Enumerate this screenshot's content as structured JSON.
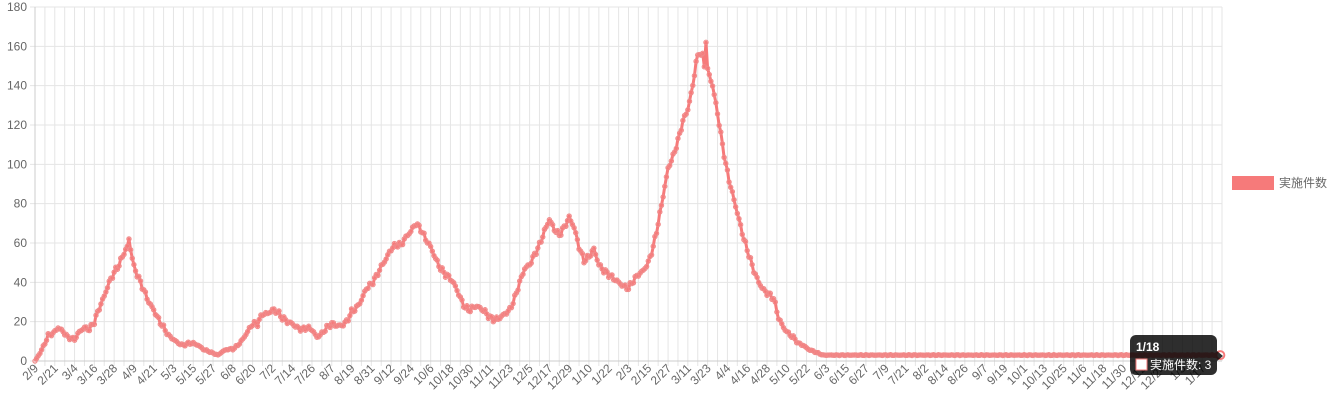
{
  "chart_data": {
    "type": "line",
    "title": "",
    "xlabel": "",
    "ylabel": "",
    "ylim": [
      0,
      180
    ],
    "yticks": [
      0,
      20,
      40,
      60,
      80,
      100,
      120,
      140,
      160,
      180
    ],
    "grid": true,
    "legend_position": "right",
    "colors": {
      "line": "#f67a7a",
      "fill": "#f67a7a",
      "point": "#f08a8a",
      "grid": "#e5e5e5",
      "axis": "#cccccc",
      "tick_text": "#666666"
    },
    "x_tick_labels": [
      "2/9",
      "2/21",
      "3/4",
      "3/16",
      "3/28",
      "4/9",
      "4/21",
      "5/3",
      "5/15",
      "5/27",
      "6/8",
      "6/20",
      "7/2",
      "7/14",
      "7/26",
      "8/7",
      "8/19",
      "8/31",
      "9/12",
      "9/24",
      "10/6",
      "10/18",
      "10/30",
      "11/11",
      "11/23",
      "12/5",
      "12/17",
      "12/29",
      "1/10",
      "1/22",
      "2/3",
      "2/15",
      "2/27",
      "3/11",
      "3/23",
      "4/4",
      "4/16",
      "4/28",
      "5/10",
      "5/22",
      "6/3",
      "6/15",
      "6/27",
      "7/9",
      "7/21",
      "8/2",
      "8/14",
      "8/26",
      "9/7",
      "9/19",
      "10/1",
      "10/13",
      "10/25",
      "11/6",
      "11/18",
      "11/30",
      "12/12",
      "12/24",
      "1/5",
      "1/17"
    ],
    "series": [
      {
        "name": "実施件数",
        "anchors": [
          [
            0,
            0
          ],
          [
            3,
            4
          ],
          [
            6,
            9
          ],
          [
            8,
            13
          ],
          [
            11,
            14
          ],
          [
            14,
            17
          ],
          [
            17,
            15
          ],
          [
            20,
            12
          ],
          [
            24,
            11
          ],
          [
            27,
            15
          ],
          [
            30,
            17
          ],
          [
            33,
            16
          ],
          [
            36,
            20
          ],
          [
            39,
            27
          ],
          [
            42,
            33
          ],
          [
            45,
            40
          ],
          [
            48,
            45
          ],
          [
            51,
            49
          ],
          [
            54,
            55
          ],
          [
            56,
            58
          ],
          [
            57,
            62
          ],
          [
            58,
            57
          ],
          [
            60,
            48
          ],
          [
            63,
            42
          ],
          [
            66,
            36
          ],
          [
            69,
            30
          ],
          [
            72,
            26
          ],
          [
            75,
            21
          ],
          [
            78,
            17
          ],
          [
            81,
            13
          ],
          [
            84,
            11
          ],
          [
            87,
            9
          ],
          [
            90,
            8
          ],
          [
            93,
            9
          ],
          [
            96,
            9
          ],
          [
            99,
            8
          ],
          [
            102,
            6
          ],
          [
            105,
            5
          ],
          [
            108,
            4
          ],
          [
            111,
            3
          ],
          [
            114,
            5
          ],
          [
            117,
            6
          ],
          [
            120,
            6
          ],
          [
            123,
            8
          ],
          [
            126,
            11
          ],
          [
            129,
            15
          ],
          [
            132,
            19
          ],
          [
            135,
            19
          ],
          [
            138,
            24
          ],
          [
            141,
            24
          ],
          [
            144,
            26
          ],
          [
            147,
            25
          ],
          [
            150,
            22
          ],
          [
            153,
            20
          ],
          [
            156,
            19
          ],
          [
            159,
            17
          ],
          [
            162,
            16
          ],
          [
            165,
            17
          ],
          [
            168,
            16
          ],
          [
            171,
            12
          ],
          [
            174,
            14
          ],
          [
            177,
            17
          ],
          [
            180,
            19
          ],
          [
            183,
            18
          ],
          [
            186,
            18
          ],
          [
            189,
            20
          ],
          [
            192,
            25
          ],
          [
            195,
            27
          ],
          [
            198,
            31
          ],
          [
            201,
            37
          ],
          [
            204,
            39
          ],
          [
            207,
            43
          ],
          [
            210,
            48
          ],
          [
            213,
            52
          ],
          [
            216,
            57
          ],
          [
            219,
            59
          ],
          [
            222,
            59
          ],
          [
            225,
            63
          ],
          [
            228,
            66
          ],
          [
            231,
            70
          ],
          [
            234,
            67
          ],
          [
            237,
            62
          ],
          [
            240,
            58
          ],
          [
            243,
            52
          ],
          [
            246,
            47
          ],
          [
            249,
            44
          ],
          [
            252,
            42
          ],
          [
            255,
            38
          ],
          [
            258,
            32
          ],
          [
            261,
            27
          ],
          [
            264,
            26
          ],
          [
            267,
            28
          ],
          [
            270,
            27
          ],
          [
            273,
            25
          ],
          [
            276,
            22
          ],
          [
            279,
            21
          ],
          [
            282,
            22
          ],
          [
            285,
            24
          ],
          [
            288,
            26
          ],
          [
            291,
            32
          ],
          [
            294,
            40
          ],
          [
            297,
            47
          ],
          [
            300,
            49
          ],
          [
            303,
            54
          ],
          [
            306,
            59
          ],
          [
            309,
            66
          ],
          [
            312,
            72
          ],
          [
            315,
            67
          ],
          [
            318,
            64
          ],
          [
            321,
            68
          ],
          [
            324,
            73
          ],
          [
            327,
            68
          ],
          [
            330,
            58
          ],
          [
            333,
            51
          ],
          [
            336,
            53
          ],
          [
            339,
            57
          ],
          [
            342,
            49
          ],
          [
            345,
            46
          ],
          [
            348,
            44
          ],
          [
            351,
            42
          ],
          [
            354,
            40
          ],
          [
            357,
            38
          ],
          [
            360,
            37
          ],
          [
            363,
            41
          ],
          [
            366,
            44
          ],
          [
            369,
            46
          ],
          [
            372,
            50
          ],
          [
            375,
            58
          ],
          [
            378,
            70
          ],
          [
            381,
            84
          ],
          [
            384,
            98
          ],
          [
            387,
            104
          ],
          [
            390,
            112
          ],
          [
            393,
            122
          ],
          [
            396,
            128
          ],
          [
            399,
            140
          ],
          [
            401,
            152
          ],
          [
            403,
            157
          ],
          [
            405,
            155
          ],
          [
            406,
            150
          ],
          [
            407,
            163
          ],
          [
            408,
            148
          ],
          [
            411,
            140
          ],
          [
            414,
            126
          ],
          [
            417,
            110
          ],
          [
            419,
            100
          ],
          [
            421,
            92
          ],
          [
            424,
            82
          ],
          [
            427,
            72
          ],
          [
            430,
            62
          ],
          [
            433,
            54
          ],
          [
            436,
            46
          ],
          [
            439,
            40
          ],
          [
            442,
            36
          ],
          [
            445,
            34
          ],
          [
            448,
            32
          ],
          [
            451,
            22
          ],
          [
            454,
            17
          ],
          [
            457,
            14
          ],
          [
            460,
            12
          ],
          [
            463,
            9
          ],
          [
            466,
            8
          ],
          [
            469,
            6
          ],
          [
            472,
            5
          ],
          [
            475,
            4
          ],
          [
            478,
            3
          ],
          [
            480,
            3
          ]
        ]
      }
    ],
    "tooltip": {
      "title": "1/18",
      "label": "実施件数",
      "value": 3
    }
  }
}
